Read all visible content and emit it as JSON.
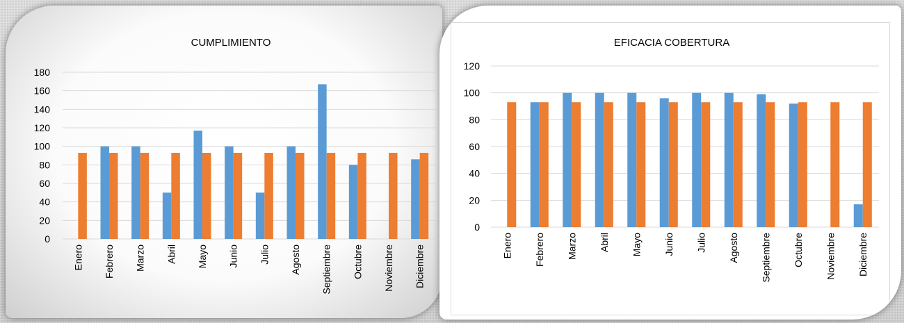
{
  "colors": {
    "series_blue": "#5b9bd5",
    "series_orange": "#ed7d31",
    "grid": "#d9d9d9",
    "text": "#000000"
  },
  "chart_data": [
    {
      "type": "bar",
      "title": "CUMPLIMIENTO",
      "categories": [
        "Enero",
        "Febrero",
        "Marzo",
        "Abril",
        "Mayo",
        "Junio",
        "Julio",
        "Agosto",
        "Septiembre",
        "Octubre",
        "Noviembre",
        "Diciembre"
      ],
      "series": [
        {
          "color": "#5b9bd5",
          "values": [
            null,
            100,
            100,
            50,
            117,
            100,
            50,
            100,
            167,
            80,
            null,
            86
          ]
        },
        {
          "color": "#ed7d31",
          "values": [
            93,
            93,
            93,
            93,
            93,
            93,
            93,
            93,
            93,
            93,
            93,
            93
          ]
        }
      ],
      "ylim": [
        0,
        180
      ],
      "yticks": [
        0,
        20,
        40,
        60,
        80,
        100,
        120,
        140,
        160,
        180
      ],
      "grid": true,
      "legend": "none"
    },
    {
      "type": "bar",
      "title": "EFICACIA COBERTURA",
      "categories": [
        "Enero",
        "Febrero",
        "Marzo",
        "Abril",
        "Mayo",
        "Junio",
        "Julio",
        "Agosto",
        "Septiembre",
        "Octubre",
        "Noviembre",
        "Diciembre"
      ],
      "series": [
        {
          "color": "#5b9bd5",
          "values": [
            null,
            93,
            100,
            100,
            100,
            96,
            100,
            100,
            99,
            92,
            null,
            17
          ]
        },
        {
          "color": "#ed7d31",
          "values": [
            93,
            93,
            93,
            93,
            93,
            93,
            93,
            93,
            93,
            93,
            93,
            93
          ]
        }
      ],
      "ylim": [
        0,
        120
      ],
      "yticks": [
        0,
        20,
        40,
        60,
        80,
        100,
        120
      ],
      "grid": true,
      "legend": "none"
    }
  ]
}
